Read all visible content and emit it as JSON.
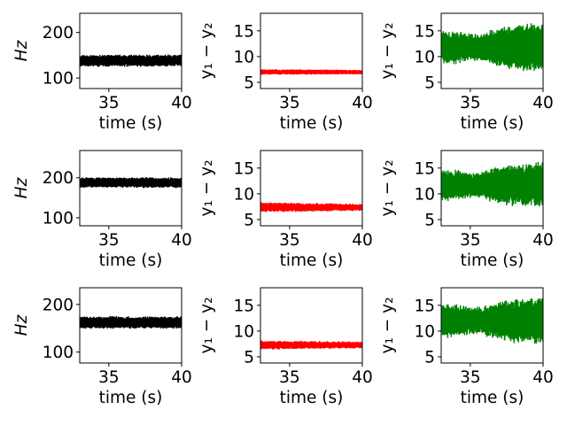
{
  "figure": {
    "background": "#ffffff"
  },
  "chart_data": [
    {
      "type": "line",
      "row": 0,
      "col": 0,
      "xlabel": "time (s)",
      "ylabel": "Hz",
      "ylabel_style": "italic",
      "xlim": [
        33,
        40
      ],
      "ylim": [
        77,
        242
      ],
      "xticks": [
        35,
        40
      ],
      "yticks": [
        100,
        200
      ],
      "series": [
        {
          "color": "#000000",
          "center": 138,
          "amp_start": 12,
          "amp_end": 12,
          "mid_bump": 0,
          "seed": 11
        }
      ]
    },
    {
      "type": "line",
      "row": 0,
      "col": 1,
      "xlabel": "time (s)",
      "ylabel": "y₁ − y₂",
      "xlim": [
        33,
        40
      ],
      "ylim": [
        3.8,
        18.4
      ],
      "xticks": [
        35,
        40
      ],
      "yticks": [
        5,
        10,
        15
      ],
      "series": [
        {
          "color": "#ff0000",
          "center": 7.0,
          "amp_start": 0.5,
          "amp_end": 0.4,
          "mid_bump": 0,
          "seed": 12
        }
      ]
    },
    {
      "type": "line",
      "row": 0,
      "col": 2,
      "xlabel": "time (s)",
      "ylabel": "y₁ − y₂",
      "xlim": [
        33,
        40
      ],
      "ylim": [
        3.8,
        18.4
      ],
      "xticks": [
        35,
        40
      ],
      "yticks": [
        5,
        10,
        15
      ],
      "series": [
        {
          "color": "#008000",
          "center": 11.8,
          "amp_start": 3.0,
          "amp_end": 4.5,
          "mid_bump": -1.2,
          "seed": 13
        }
      ]
    },
    {
      "type": "line",
      "row": 1,
      "col": 0,
      "xlabel": "time (s)",
      "ylabel": "Hz",
      "ylabel_style": "italic",
      "xlim": [
        33,
        40
      ],
      "ylim": [
        80,
        268
      ],
      "xticks": [
        35,
        40
      ],
      "yticks": [
        100,
        200
      ],
      "series": [
        {
          "color": "#000000",
          "center": 188,
          "amp_start": 12,
          "amp_end": 12,
          "mid_bump": 0,
          "seed": 21
        }
      ]
    },
    {
      "type": "line",
      "row": 1,
      "col": 1,
      "xlabel": "time (s)",
      "ylabel": "y₁ − y₂",
      "xlim": [
        33,
        40
      ],
      "ylim": [
        3.8,
        18.4
      ],
      "xticks": [
        35,
        40
      ],
      "yticks": [
        5,
        10,
        15
      ],
      "series": [
        {
          "color": "#ff0000",
          "center": 7.4,
          "amp_start": 0.9,
          "amp_end": 0.6,
          "mid_bump": 0,
          "seed": 22
        }
      ]
    },
    {
      "type": "line",
      "row": 1,
      "col": 2,
      "xlabel": "time (s)",
      "ylabel": "y₁ − y₂",
      "xlim": [
        33,
        40
      ],
      "ylim": [
        3.8,
        18.4
      ],
      "xticks": [
        35,
        40
      ],
      "yticks": [
        5,
        10,
        15
      ],
      "series": [
        {
          "color": "#008000",
          "center": 11.7,
          "amp_start": 2.8,
          "amp_end": 4.2,
          "mid_bump": -1.0,
          "seed": 23
        }
      ]
    },
    {
      "type": "line",
      "row": 2,
      "col": 0,
      "xlabel": "time (s)",
      "ylabel": "Hz",
      "ylabel_style": "italic",
      "xlim": [
        33,
        40
      ],
      "ylim": [
        77,
        235
      ],
      "xticks": [
        35,
        40
      ],
      "yticks": [
        100,
        200
      ],
      "series": [
        {
          "color": "#000000",
          "center": 162,
          "amp_start": 12,
          "amp_end": 12,
          "mid_bump": 0,
          "seed": 31
        }
      ]
    },
    {
      "type": "line",
      "row": 2,
      "col": 1,
      "xlabel": "time (s)",
      "ylabel": "y₁ − y₂",
      "xlim": [
        33,
        40
      ],
      "ylim": [
        3.8,
        18.4
      ],
      "xticks": [
        35,
        40
      ],
      "yticks": [
        5,
        10,
        15
      ],
      "series": [
        {
          "color": "#ff0000",
          "center": 7.3,
          "amp_start": 0.8,
          "amp_end": 0.6,
          "mid_bump": 0,
          "seed": 32
        }
      ]
    },
    {
      "type": "line",
      "row": 2,
      "col": 2,
      "xlabel": "time (s)",
      "ylabel": "y₁ − y₂",
      "xlim": [
        33,
        40
      ],
      "ylim": [
        3.8,
        18.4
      ],
      "xticks": [
        35,
        40
      ],
      "yticks": [
        5,
        10,
        15
      ],
      "series": [
        {
          "color": "#008000",
          "center": 12.0,
          "amp_start": 3.0,
          "amp_end": 4.3,
          "mid_bump": -1.1,
          "seed": 33
        }
      ]
    }
  ]
}
